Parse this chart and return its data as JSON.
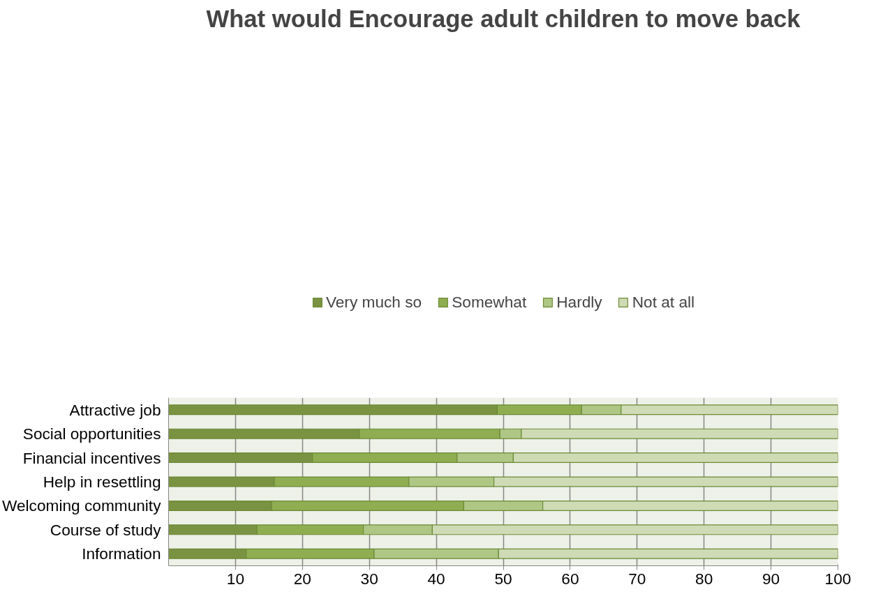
{
  "chart_data": {
    "type": "bar",
    "orientation": "horizontal",
    "stacked": true,
    "title": "What would Encourage adult children to move back",
    "categories": [
      "Attractive job",
      "Social opportunities",
      "Financial incentives",
      "Help in resettling",
      "Welcoming community",
      "Course of study",
      "Information"
    ],
    "series": [
      {
        "name": "Very much so",
        "color": "#7a9342",
        "values": [
          49.1,
          28.5,
          21.5,
          15.8,
          15.4,
          13.2,
          11.6
        ]
      },
      {
        "name": "Somewhat",
        "color": "#8fae52",
        "values": [
          12.6,
          21.0,
          21.6,
          20.1,
          28.7,
          15.9,
          19.1
        ]
      },
      {
        "name": "Hardly",
        "color": "#aec785",
        "values": [
          5.9,
          3.2,
          8.4,
          12.7,
          11.8,
          10.3,
          18.6
        ]
      },
      {
        "name": "Not at all",
        "color": "#cedbb5",
        "values": [
          32.4,
          47.3,
          48.5,
          51.4,
          44.1,
          60.6,
          50.7
        ]
      }
    ],
    "xlim": [
      0,
      100
    ],
    "xticks": [
      10,
      20,
      30,
      40,
      50,
      60,
      70,
      80,
      90,
      100
    ],
    "grid": "x",
    "legend": "top"
  }
}
